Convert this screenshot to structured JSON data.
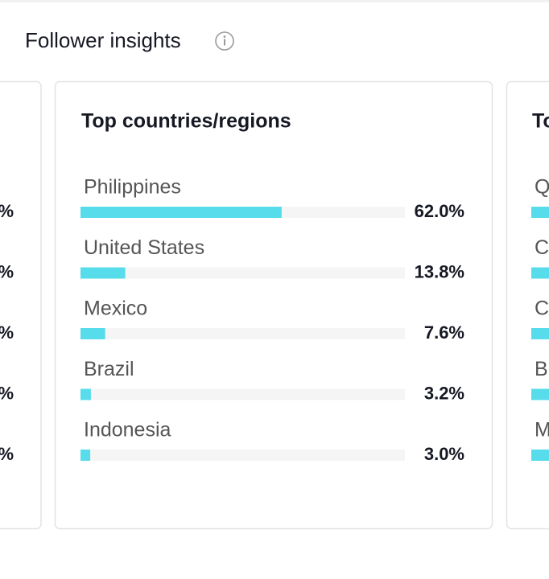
{
  "header": {
    "title": "Follower insights"
  },
  "chart_data": {
    "type": "hbar",
    "title": "Top countries/regions",
    "categories": [
      "Philippines",
      "United States",
      "Mexico",
      "Brazil",
      "Indonesia"
    ],
    "values": [
      62.0,
      13.8,
      7.6,
      3.2,
      3.0
    ],
    "value_labels": [
      "62.0%",
      "13.8%",
      "7.6%",
      "3.2%",
      "3.0%"
    ],
    "color": "#57dceb",
    "xlim": [
      0,
      100
    ]
  },
  "side_cards": {
    "left": {
      "value_fragments": [
        "%",
        "%",
        "%",
        "%",
        "%"
      ]
    },
    "right": {
      "title_fragment": "To",
      "label_fragments": [
        "Q",
        "C",
        "C",
        "B",
        "M"
      ]
    }
  }
}
